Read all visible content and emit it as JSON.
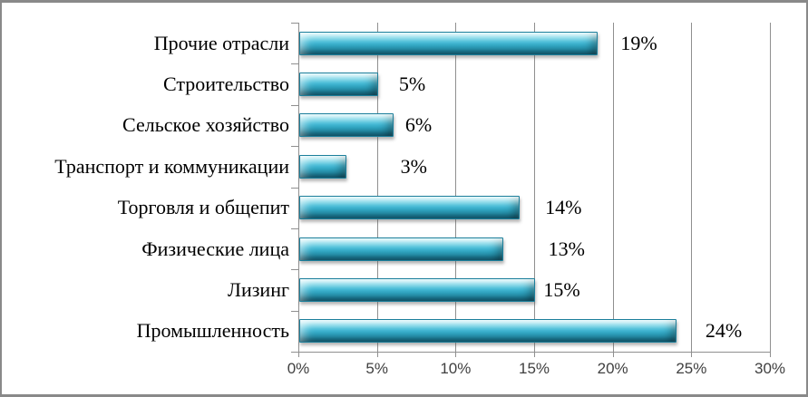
{
  "chart_data": {
    "type": "bar",
    "orientation": "horizontal",
    "title": "",
    "categories": [
      "Прочие отрасли",
      "Строительство",
      "Сельское хозяйство",
      "Транспорт и коммуникации",
      "Торговля и общепит",
      "Физические лица",
      "Лизинг",
      "Промышленность"
    ],
    "values": [
      19,
      5,
      6,
      3,
      14,
      13,
      15,
      24
    ],
    "data_labels": [
      "19%",
      "5%",
      "6%",
      "3%",
      "14%",
      "13%",
      "15%",
      "24%"
    ],
    "data_label_anchor_x": [
      20.5,
      6.4,
      6.8,
      6.5,
      15.7,
      15.9,
      15.6,
      25.9
    ],
    "x_axis": {
      "min": 0,
      "max": 30,
      "step": 5,
      "tick_labels": [
        "0%",
        "5%",
        "10%",
        "15%",
        "20%",
        "25%",
        "30%"
      ]
    },
    "xlabel": "",
    "ylabel": "",
    "grid": "vertical-only",
    "legend": "none",
    "colors": {
      "bar_fill": "#3cb8d5",
      "bar_fill_light": "#a9e9f4",
      "bar_fill_mid_light": "#5fcde2",
      "bar_fill_mid_dark": "#2ba4c2",
      "bar_fill_dark": "#157a99",
      "bar_border": "#1c7f9b",
      "gridline": "#8f8f8f",
      "axis_line": "#8f8f8f",
      "label_text": "#000000",
      "axis_text": "#404040",
      "frame_border": "#898989",
      "background": "#ffffff"
    }
  }
}
